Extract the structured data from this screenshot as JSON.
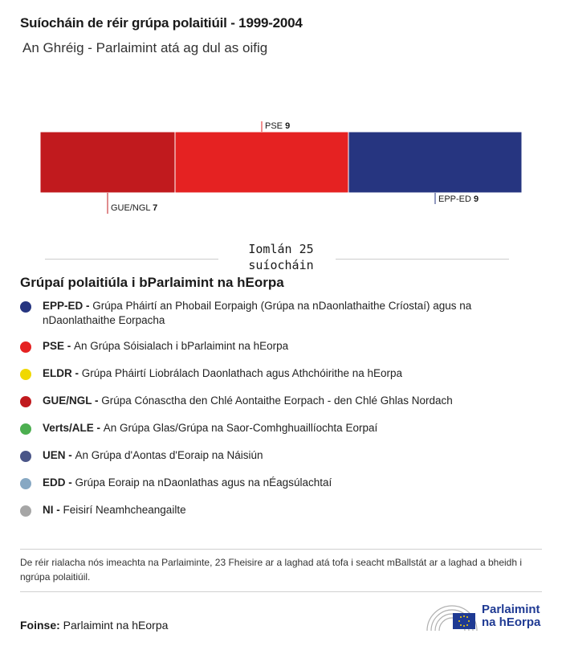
{
  "title": "Suíocháin de réir grúpa polaitiúil - 1999-2004",
  "subtitle": "An Ghréig - Parlaimint atá ag dul as oifig",
  "chart_data": {
    "type": "bar",
    "orientation": "horizontal-stacked",
    "categories": [
      "GUE/NGL",
      "PSE",
      "EPP-ED"
    ],
    "values": [
      7,
      9,
      9
    ],
    "colors": [
      "#c11a1e",
      "#e52222",
      "#263580"
    ],
    "label_positions": [
      "below",
      "above",
      "below"
    ],
    "total": 25
  },
  "total_label": "Iomlán 25 suíocháin",
  "legend_title": "Grúpaí polaitiúla i bParlaimint na hEorpa",
  "legend": [
    {
      "abbr": "EPP-ED -",
      "name": "Grúpa Pháirtí an Phobail Eorpaigh (Grúpa na nDaonlathaithe Críostaí) agus na nDaonlathaithe Eorpacha",
      "color": "#263580"
    },
    {
      "abbr": "PSE -",
      "name": "An Grúpa Sóisialach i bParlaimint na hEorpa",
      "color": "#e52222"
    },
    {
      "abbr": "ELDR -",
      "name": "Grúpa Pháirtí Liobrálach Daonlathach agus Athchóirithe na hEorpa",
      "color": "#f0d800"
    },
    {
      "abbr": "GUE/NGL -",
      "name": "Grúpa Cónasctha den Chlé Aontaithe Eorpach - den Chlé Ghlas Nordach",
      "color": "#c11a1e"
    },
    {
      "abbr": "Verts/ALE -",
      "name": "An Grúpa Glas/Grúpa na Saor-Comhghuaillíochta Eorpaí",
      "color": "#4caf50"
    },
    {
      "abbr": "UEN -",
      "name": "An Grúpa d'Aontas d'Eoraip na Náisiún",
      "color": "#4a5688"
    },
    {
      "abbr": "EDD -",
      "name": "Grúpa Eoraip na nDaonlathas agus na nÉagsúlachtaí",
      "color": "#87a8c3"
    },
    {
      "abbr": "NI -",
      "name": "Feisirí Neamhcheangailte",
      "color": "#a6a6a6"
    }
  ],
  "note": "De réir rialacha nós imeachta na Parlaiminte, 23 Fheisire ar a laghad atá tofa i seacht mBallstát ar a laghad a bheidh i ngrúpa polaitiúil.",
  "source": {
    "label": "Foinse:",
    "value": "Parlaimint na hEorpa"
  },
  "logo": {
    "line1": "Parlaimint",
    "line2": "na hEorpa"
  }
}
